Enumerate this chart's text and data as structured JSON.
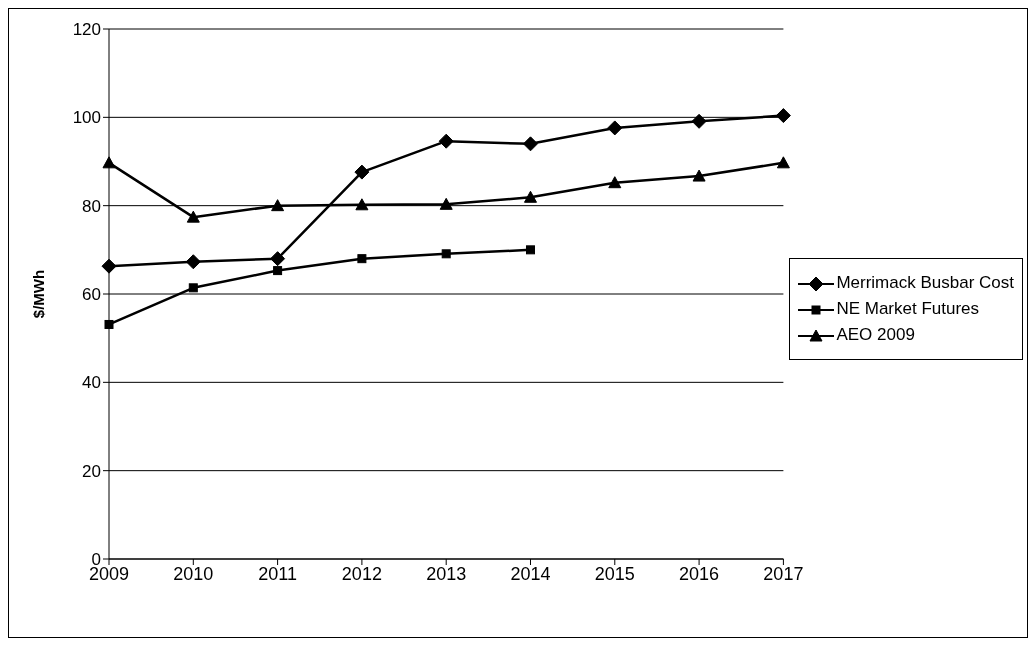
{
  "chart_data": {
    "type": "line",
    "ylabel": "$/MWh",
    "categories": [
      "2009",
      "2010",
      "2011",
      "2012",
      "2013",
      "2014",
      "2015",
      "2016",
      "2017"
    ],
    "series": [
      {
        "name": "Merrimack Busbar Cost",
        "color": "#000000",
        "marker": "diamond",
        "values": [
          66.3,
          67.3,
          68.0,
          87.6,
          94.6,
          94.0,
          97.6,
          99.1,
          100.4
        ]
      },
      {
        "name": "NE Market Futures",
        "color": "#000000",
        "marker": "square",
        "values": [
          53.1,
          61.4,
          65.3,
          68.0,
          69.1,
          70.0,
          null,
          null,
          null
        ]
      },
      {
        "name": "AEO 2009",
        "color": "#000000",
        "marker": "triangle",
        "values": [
          89.7,
          77.4,
          80.0,
          80.2,
          80.3,
          81.9,
          85.2,
          86.7,
          89.7
        ]
      }
    ],
    "ylim": [
      0,
      120
    ],
    "yticks": [
      0,
      20,
      40,
      60,
      80,
      100,
      120
    ],
    "grid": "y",
    "legend": "right"
  }
}
